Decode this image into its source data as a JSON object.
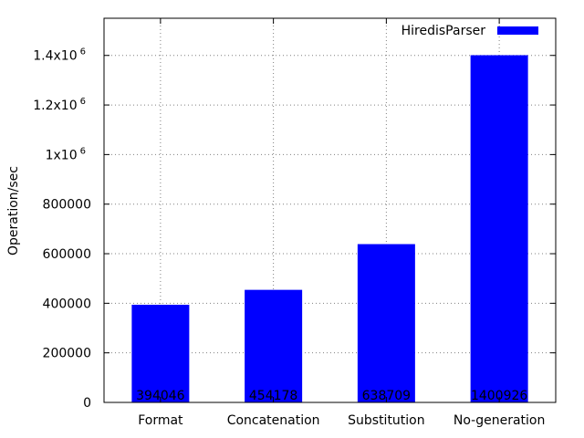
{
  "chart_data": {
    "type": "bar",
    "ylabel": "Operation/sec",
    "xlabel": "",
    "categories": [
      "Format",
      "Concatenation",
      "Substitution",
      "No-generation"
    ],
    "series": [
      {
        "name": "HiredisParser",
        "color": "#0000ff",
        "values": [
          394046,
          454178,
          638709,
          1400926
        ]
      }
    ],
    "data_labels": [
      "394046",
      "454178",
      "638709",
      "1400926"
    ],
    "ylim": [
      0,
      1550000
    ],
    "y_ticks": [
      {
        "value": 0,
        "label": "0",
        "sup": ""
      },
      {
        "value": 200000,
        "label": "200000",
        "sup": ""
      },
      {
        "value": 400000,
        "label": "400000",
        "sup": ""
      },
      {
        "value": 600000,
        "label": "600000",
        "sup": ""
      },
      {
        "value": 800000,
        "label": "800000",
        "sup": ""
      },
      {
        "value": 1000000,
        "label": "1x10",
        "sup": "6"
      },
      {
        "value": 1200000,
        "label": "1.2x10",
        "sup": "6"
      },
      {
        "value": 1400000,
        "label": "1.4x10",
        "sup": "6"
      }
    ],
    "grid": true,
    "legend_position": "top-right"
  }
}
